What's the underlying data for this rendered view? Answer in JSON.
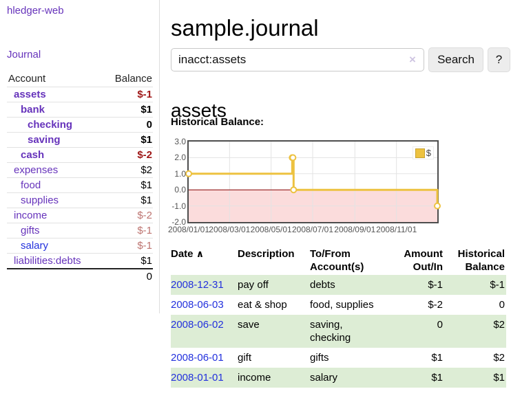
{
  "colors": {
    "link_purple": "#6633bb",
    "link_blue": "#2230dd",
    "negative_bold": "#9e1616",
    "negative_muted": "#bd7470",
    "negative_table": "#9e1a1a",
    "row_stripe_green": "#ddedd5",
    "sidebar_divider": "#dddddd"
  },
  "sidebar": {
    "brand": "hledger-web",
    "nav_journal": "Journal",
    "accounts": {
      "header_account": "Account",
      "header_balance": "Balance",
      "rows": [
        {
          "name": "assets",
          "indent": 1,
          "bold": true,
          "balance": "$-1",
          "balance_style": "neg-bold",
          "link": "purple"
        },
        {
          "name": "bank",
          "indent": 2,
          "bold": true,
          "balance": "$1",
          "balance_style": "bold",
          "link": "purple"
        },
        {
          "name": "checking",
          "indent": 3,
          "bold": true,
          "balance": "0",
          "balance_style": "bold",
          "link": "purple"
        },
        {
          "name": "saving",
          "indent": 3,
          "bold": true,
          "balance": "$1",
          "balance_style": "bold",
          "link": "purple"
        },
        {
          "name": "cash",
          "indent": 2,
          "bold": true,
          "balance": "$-2",
          "balance_style": "neg-bold",
          "link": "purple"
        },
        {
          "name": "expenses",
          "indent": 1,
          "bold": false,
          "balance": "$2",
          "balance_style": "",
          "link": "purple"
        },
        {
          "name": "food",
          "indent": 2,
          "bold": false,
          "balance": "$1",
          "balance_style": "",
          "link": "purple"
        },
        {
          "name": "supplies",
          "indent": 2,
          "bold": false,
          "balance": "$1",
          "balance_style": "",
          "link": "purple"
        },
        {
          "name": "income",
          "indent": 1,
          "bold": false,
          "balance": "$-2",
          "balance_style": "neg",
          "link": "purple"
        },
        {
          "name": "gifts",
          "indent": 2,
          "bold": false,
          "balance": "$-1",
          "balance_style": "neg",
          "link": "purple"
        },
        {
          "name": "salary",
          "indent": 2,
          "bold": false,
          "balance": "$-1",
          "balance_style": "neg",
          "link": "blue"
        },
        {
          "name": "liabilities:debts",
          "indent": 1,
          "bold": false,
          "balance": "$1",
          "balance_style": "",
          "link": "purple"
        }
      ],
      "total": "0"
    }
  },
  "header": {
    "title": "sample.journal"
  },
  "search": {
    "value": "inacct:assets",
    "clear_icon": "×",
    "button_label": "Search",
    "help_label": "?"
  },
  "account_page": {
    "heading": "assets",
    "chart_label": "Historical Balance:"
  },
  "chart_data": {
    "type": "line",
    "title": "Historical Balance:",
    "series": [
      {
        "name": "$",
        "step": true,
        "points": [
          [
            "2008-01-01",
            1
          ],
          [
            "2008-06-01",
            2
          ],
          [
            "2008-06-02",
            2
          ],
          [
            "2008-06-03",
            0
          ],
          [
            "2008-12-31",
            -1
          ]
        ]
      }
    ],
    "x_range": [
      "2008-01-01",
      "2008-12-31"
    ],
    "ylim": [
      -2,
      3
    ],
    "y_ticks": [
      "3.0",
      "2.0",
      "1.0",
      "0.0",
      "-1.0",
      "-2.0"
    ],
    "x_ticks": [
      "2008/01/01",
      "2008/03/01",
      "2008/05/01",
      "2008/07/01",
      "2008/09/01",
      "2008/11/01"
    ],
    "legend": [
      {
        "label": "$",
        "color": "#edc240"
      }
    ],
    "legend_position": "top-right",
    "grid": true,
    "colors": {
      "series": "#edc240",
      "marker_fill": "#ffffff",
      "negative_region": "#fbdcdc",
      "zero_line": "#8b0000",
      "grid": "#e3e3e3",
      "border": "#4d4d4d",
      "tick_text": "#545454"
    }
  },
  "register": {
    "headers": {
      "date": "Date",
      "sort_indicator": "∧",
      "description": "Description",
      "accounts": "To/From Account(s)",
      "amount": "Amount Out/In",
      "balance": "Historical Balance"
    },
    "rows": [
      {
        "date": "2008-12-31",
        "description": "pay off",
        "accounts": "debts",
        "amount": "$-1",
        "amount_neg": true,
        "balance": "$-1",
        "balance_neg": true
      },
      {
        "date": "2008-06-03",
        "description": "eat & shop",
        "accounts": "food, supplies",
        "amount": "$-2",
        "amount_neg": true,
        "balance": "0",
        "balance_neg": false
      },
      {
        "date": "2008-06-02",
        "description": "save",
        "accounts": "saving, checking",
        "amount": "0",
        "amount_neg": false,
        "balance": "$2",
        "balance_neg": false
      },
      {
        "date": "2008-06-01",
        "description": "gift",
        "accounts": "gifts",
        "amount": "$1",
        "amount_neg": false,
        "balance": "$2",
        "balance_neg": false
      },
      {
        "date": "2008-01-01",
        "description": "income",
        "accounts": "salary",
        "amount": "$1",
        "amount_neg": false,
        "balance": "$1",
        "balance_neg": false
      }
    ]
  }
}
